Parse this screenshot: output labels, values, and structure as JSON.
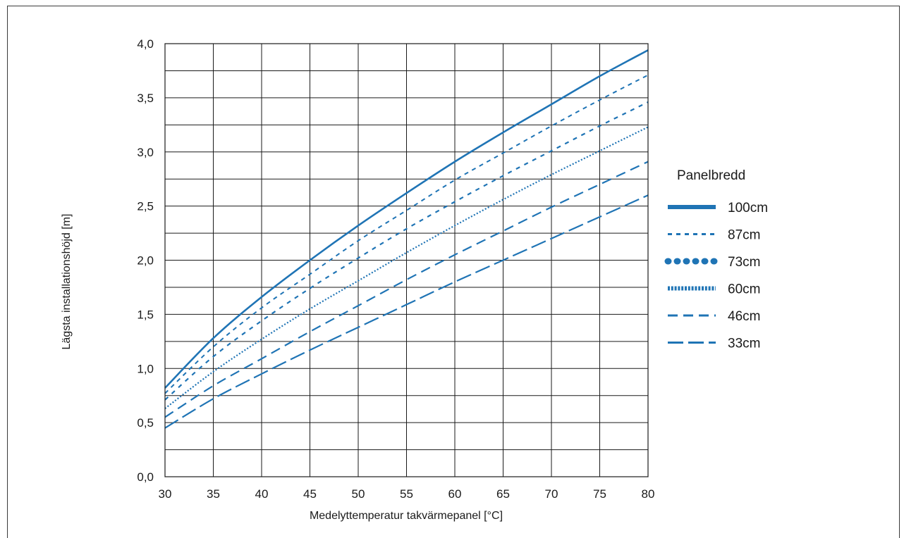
{
  "chart_data": {
    "type": "line",
    "title": "",
    "xlabel": "Medelyttemperatur takvärmepanel [°C]",
    "ylabel": "Lägsta installationshöjd [m]",
    "xlim": [
      30,
      80
    ],
    "ylim": [
      0,
      4.0
    ],
    "x_ticks": [
      "30",
      "35",
      "40",
      "45",
      "50",
      "55",
      "60",
      "65",
      "70",
      "75",
      "80"
    ],
    "y_ticks": [
      "0,0",
      "0,5",
      "1,0",
      "1,5",
      "2,0",
      "2,5",
      "3,0",
      "3,5",
      "4,0"
    ],
    "grid": true,
    "line_color": "#1f74b5",
    "legend_title": "Panelbredd",
    "legend_position": "right",
    "x": [
      30,
      35,
      40,
      45,
      50,
      55,
      60,
      65,
      70,
      75,
      80
    ],
    "series": [
      {
        "name": "100cm",
        "dash": "solid",
        "values": [
          0.82,
          1.28,
          1.66,
          2.0,
          2.32,
          2.62,
          2.91,
          3.18,
          3.44,
          3.7,
          3.94
        ]
      },
      {
        "name": "87cm",
        "dash": "short-dash",
        "values": [
          0.77,
          1.2,
          1.56,
          1.87,
          2.18,
          2.46,
          2.74,
          2.99,
          3.24,
          3.48,
          3.71
        ]
      },
      {
        "name": "73cm",
        "dash": "dot-dash-heavy",
        "values": [
          0.71,
          1.11,
          1.44,
          1.74,
          2.02,
          2.29,
          2.54,
          2.78,
          3.01,
          3.24,
          3.46
        ]
      },
      {
        "name": "60cm",
        "dash": "dotted",
        "values": [
          0.63,
          0.97,
          1.27,
          1.55,
          1.81,
          2.07,
          2.32,
          2.56,
          2.79,
          3.01,
          3.23
        ]
      },
      {
        "name": "46cm",
        "dash": "long-dash",
        "values": [
          0.55,
          0.84,
          1.09,
          1.34,
          1.58,
          1.82,
          2.05,
          2.27,
          2.49,
          2.7,
          2.91
        ]
      },
      {
        "name": "33cm",
        "dash": "longer-dash",
        "values": [
          0.45,
          0.72,
          0.95,
          1.17,
          1.38,
          1.59,
          1.8,
          2.0,
          2.2,
          2.4,
          2.6
        ]
      }
    ]
  }
}
